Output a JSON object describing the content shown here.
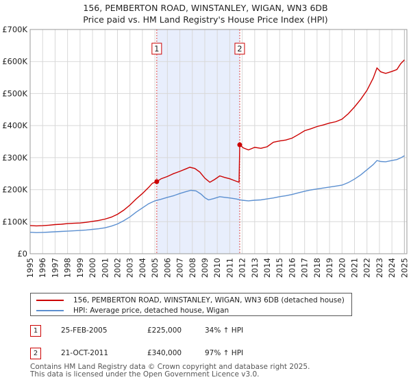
{
  "chart_data": {
    "type": "line",
    "title": "156, PEMBERTON ROAD, WINSTANLEY, WIGAN, WN3 6DB",
    "subtitle": "Price paid vs. HM Land Registry's House Price Index (HPI)",
    "xlabel": "",
    "ylabel": "",
    "xlim": [
      1995,
      2025.2
    ],
    "ylim": [
      0,
      700000
    ],
    "x_ticks": [
      "1995",
      "1996",
      "1997",
      "1998",
      "1999",
      "2000",
      "2001",
      "2002",
      "2003",
      "2004",
      "2005",
      "2006",
      "2007",
      "2008",
      "2009",
      "2010",
      "2011",
      "2012",
      "2013",
      "2014",
      "2015",
      "2016",
      "2017",
      "2018",
      "2019",
      "2020",
      "2021",
      "2022",
      "2023",
      "2024",
      "2025"
    ],
    "y_ticks": [
      {
        "value": 0,
        "label": "£0"
      },
      {
        "value": 100000,
        "label": "£100K"
      },
      {
        "value": 200000,
        "label": "£200K"
      },
      {
        "value": 300000,
        "label": "£300K"
      },
      {
        "value": 400000,
        "label": "£400K"
      },
      {
        "value": 500000,
        "label": "£500K"
      },
      {
        "value": 600000,
        "label": "£600K"
      },
      {
        "value": 700000,
        "label": "£700K"
      }
    ],
    "grid": true,
    "shaded_region": {
      "from": 2005.15,
      "to": 2011.8,
      "color": "#e8eefc"
    },
    "series": [
      {
        "name": "156, PEMBERTON ROAD, WINSTANLEY, WIGAN, WN3 6DB (detached house)",
        "color": "#cc0000",
        "points": [
          [
            1995.0,
            88000
          ],
          [
            1995.5,
            87000
          ],
          [
            1996.0,
            87500
          ],
          [
            1996.5,
            89000
          ],
          [
            1997.0,
            91000
          ],
          [
            1997.5,
            92000
          ],
          [
            1998.0,
            94000
          ],
          [
            1998.5,
            95000
          ],
          [
            1999.0,
            96000
          ],
          [
            1999.5,
            98000
          ],
          [
            2000.0,
            101000
          ],
          [
            2000.5,
            104000
          ],
          [
            2001.0,
            108000
          ],
          [
            2001.5,
            114000
          ],
          [
            2002.0,
            123000
          ],
          [
            2002.5,
            136000
          ],
          [
            2003.0,
            152000
          ],
          [
            2003.5,
            171000
          ],
          [
            2004.0,
            188000
          ],
          [
            2004.5,
            207000
          ],
          [
            2004.8,
            220000
          ],
          [
            2005.15,
            225000
          ],
          [
            2005.5,
            234000
          ],
          [
            2006.0,
            241000
          ],
          [
            2006.5,
            250000
          ],
          [
            2007.0,
            257000
          ],
          [
            2007.5,
            265000
          ],
          [
            2007.8,
            270000
          ],
          [
            2008.2,
            266000
          ],
          [
            2008.6,
            255000
          ],
          [
            2009.0,
            236000
          ],
          [
            2009.4,
            223000
          ],
          [
            2009.8,
            232000
          ],
          [
            2010.2,
            243000
          ],
          [
            2010.6,
            238000
          ],
          [
            2011.0,
            234000
          ],
          [
            2011.4,
            228000
          ],
          [
            2011.75,
            223000
          ],
          [
            2011.8,
            340000
          ],
          [
            2012.1,
            330000
          ],
          [
            2012.5,
            324000
          ],
          [
            2013.0,
            332000
          ],
          [
            2013.5,
            329000
          ],
          [
            2014.0,
            334000
          ],
          [
            2014.5,
            348000
          ],
          [
            2015.0,
            352000
          ],
          [
            2015.5,
            355000
          ],
          [
            2016.0,
            361000
          ],
          [
            2016.5,
            372000
          ],
          [
            2017.0,
            384000
          ],
          [
            2017.5,
            390000
          ],
          [
            2018.0,
            397000
          ],
          [
            2018.5,
            402000
          ],
          [
            2019.0,
            408000
          ],
          [
            2019.5,
            412000
          ],
          [
            2020.0,
            420000
          ],
          [
            2020.5,
            437000
          ],
          [
            2021.0,
            458000
          ],
          [
            2021.5,
            482000
          ],
          [
            2022.0,
            510000
          ],
          [
            2022.5,
            548000
          ],
          [
            2022.8,
            580000
          ],
          [
            2023.1,
            568000
          ],
          [
            2023.5,
            563000
          ],
          [
            2024.0,
            569000
          ],
          [
            2024.4,
            575000
          ],
          [
            2024.7,
            593000
          ],
          [
            2025.0,
            605000
          ]
        ]
      },
      {
        "name": "HPI: Average price, detached house, Wigan",
        "color": "#5b8fd0",
        "points": [
          [
            1995.0,
            67000
          ],
          [
            1995.5,
            66000
          ],
          [
            1996.0,
            66500
          ],
          [
            1996.5,
            67500
          ],
          [
            1997.0,
            68500
          ],
          [
            1997.5,
            69500
          ],
          [
            1998.0,
            70500
          ],
          [
            1998.5,
            71500
          ],
          [
            1999.0,
            72500
          ],
          [
            1999.5,
            74000
          ],
          [
            2000.0,
            76000
          ],
          [
            2000.5,
            78000
          ],
          [
            2001.0,
            81000
          ],
          [
            2001.5,
            86000
          ],
          [
            2002.0,
            93000
          ],
          [
            2002.5,
            103000
          ],
          [
            2003.0,
            115000
          ],
          [
            2003.5,
            130000
          ],
          [
            2004.0,
            143000
          ],
          [
            2004.5,
            156000
          ],
          [
            2005.0,
            165000
          ],
          [
            2005.5,
            170000
          ],
          [
            2006.0,
            176000
          ],
          [
            2006.5,
            181000
          ],
          [
            2007.0,
            188000
          ],
          [
            2007.5,
            194000
          ],
          [
            2007.9,
            198000
          ],
          [
            2008.3,
            196000
          ],
          [
            2008.7,
            186000
          ],
          [
            2009.0,
            175000
          ],
          [
            2009.3,
            168000
          ],
          [
            2009.7,
            172000
          ],
          [
            2010.2,
            178000
          ],
          [
            2010.6,
            176000
          ],
          [
            2011.0,
            174000
          ],
          [
            2011.5,
            171000
          ],
          [
            2012.0,
            167000
          ],
          [
            2012.5,
            165000
          ],
          [
            2013.0,
            167000
          ],
          [
            2013.5,
            168000
          ],
          [
            2014.0,
            171000
          ],
          [
            2014.5,
            174000
          ],
          [
            2015.0,
            178000
          ],
          [
            2015.5,
            181000
          ],
          [
            2016.0,
            185000
          ],
          [
            2016.5,
            190000
          ],
          [
            2017.0,
            195000
          ],
          [
            2017.5,
            199000
          ],
          [
            2018.0,
            202000
          ],
          [
            2018.5,
            205000
          ],
          [
            2019.0,
            208000
          ],
          [
            2019.5,
            211000
          ],
          [
            2020.0,
            214000
          ],
          [
            2020.5,
            222000
          ],
          [
            2021.0,
            233000
          ],
          [
            2021.5,
            246000
          ],
          [
            2022.0,
            262000
          ],
          [
            2022.5,
            278000
          ],
          [
            2022.8,
            291000
          ],
          [
            2023.1,
            288000
          ],
          [
            2023.5,
            287000
          ],
          [
            2024.0,
            291000
          ],
          [
            2024.4,
            294000
          ],
          [
            2024.7,
            299000
          ],
          [
            2025.0,
            306000
          ]
        ]
      }
    ],
    "annotations": [
      {
        "label": "1",
        "x": 2005.15,
        "y": 225000
      },
      {
        "label": "2",
        "x": 2011.8,
        "y": 340000
      }
    ]
  },
  "legend": {
    "items": [
      {
        "label": "156, PEMBERTON ROAD, WINSTANLEY, WIGAN, WN3 6DB (detached house)",
        "color": "#cc0000"
      },
      {
        "label": "HPI: Average price, detached house, Wigan",
        "color": "#5b8fd0"
      }
    ]
  },
  "sales": [
    {
      "num": "1",
      "date": "25-FEB-2005",
      "price": "£225,000",
      "hpi": "34% ↑ HPI"
    },
    {
      "num": "2",
      "date": "21-OCT-2011",
      "price": "£340,000",
      "hpi": "97% ↑ HPI"
    }
  ],
  "footer": {
    "line1": "Contains HM Land Registry data © Crown copyright and database right 2025.",
    "line2": "This data is licensed under the Open Government Licence v3.0."
  }
}
